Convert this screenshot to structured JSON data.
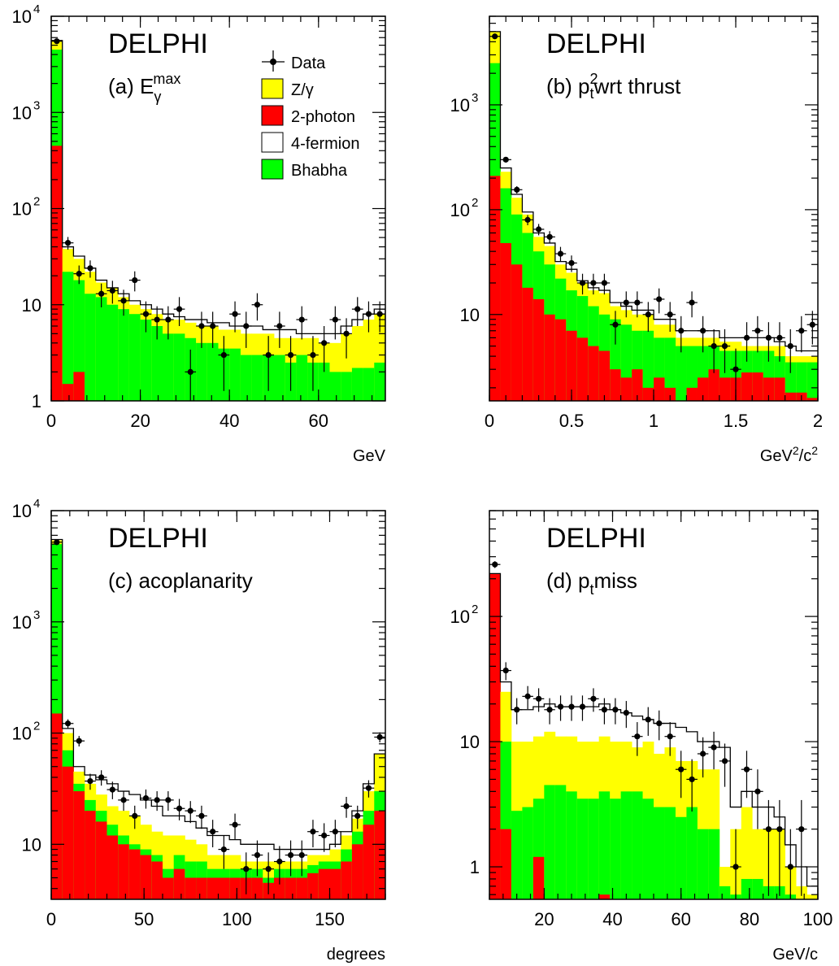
{
  "figure_label": "DELPHI",
  "legend": {
    "items": [
      {
        "key": "data",
        "label": "Data",
        "kind": "marker"
      },
      {
        "key": "zg",
        "label": "Z/γ",
        "color": "#ffff00"
      },
      {
        "key": "twophoton",
        "label": "2-photon",
        "color": "#ff0000"
      },
      {
        "key": "fourfermion",
        "label": "4-fermion",
        "color": "#ffffff"
      },
      {
        "key": "bhabha",
        "label": "Bhabha",
        "color": "#00ff00"
      }
    ]
  },
  "chart_data": [
    {
      "id": "a",
      "type": "histogram",
      "title": "DELPHI",
      "subtitle": "(a) Eγmax",
      "xlabel": "GeV",
      "xlim": [
        0,
        75
      ],
      "ylim": [
        1,
        10000
      ],
      "yscale": "log",
      "xticks": [
        0,
        20,
        40,
        60
      ],
      "bin_width": 2.5,
      "two_photon": [
        450,
        1.5,
        2,
        0.5,
        0.5,
        0.5,
        0.5,
        0.5,
        0.5,
        0.5,
        0.5,
        0.5,
        0.5,
        0.5,
        0.5,
        0.5,
        0.5,
        0.5,
        0.5,
        0.5,
        0.5,
        0.5,
        0.5,
        0.5,
        0.5,
        0.5,
        0.5,
        0.5,
        0.5,
        0.5
      ],
      "bhabha_top": [
        4500,
        22,
        18,
        13,
        12,
        10,
        9,
        8,
        7,
        6,
        5,
        5,
        4.5,
        4,
        4,
        3.5,
        3.5,
        3,
        3,
        3,
        3,
        2.5,
        3,
        2.5,
        2.5,
        2,
        2,
        2.2,
        2.2,
        2.5
      ],
      "zg_top": [
        5600,
        38,
        30,
        22,
        17,
        15,
        12,
        10,
        9,
        8,
        7,
        7,
        6.5,
        6,
        6,
        5.5,
        5.5,
        5,
        5,
        5,
        4.5,
        4.5,
        4.5,
        4.5,
        4,
        4,
        5,
        6,
        7,
        8
      ],
      "total": [
        5600,
        40,
        32,
        24,
        18,
        15,
        13,
        11,
        10,
        9,
        8,
        7.5,
        7,
        7,
        6.5,
        6.5,
        6,
        6,
        6,
        5.5,
        5.5,
        5.5,
        5,
        5,
        5,
        5,
        6,
        7,
        8,
        9
      ],
      "data": [
        {
          "x": 1.25,
          "y": 5500
        },
        {
          "x": 3.75,
          "y": 44
        },
        {
          "x": 6.25,
          "y": 21
        },
        {
          "x": 8.75,
          "y": 24
        },
        {
          "x": 11.25,
          "y": 13
        },
        {
          "x": 13.75,
          "y": 14
        },
        {
          "x": 16.25,
          "y": 11
        },
        {
          "x": 18.75,
          "y": 18
        },
        {
          "x": 21.25,
          "y": 8
        },
        {
          "x": 23.75,
          "y": 7
        },
        {
          "x": 26.25,
          "y": 7
        },
        {
          "x": 28.75,
          "y": 9
        },
        {
          "x": 31.25,
          "y": 2
        },
        {
          "x": 33.75,
          "y": 6
        },
        {
          "x": 36.25,
          "y": 6
        },
        {
          "x": 38.75,
          "y": 3
        },
        {
          "x": 41.25,
          "y": 8
        },
        {
          "x": 43.75,
          "y": 6
        },
        {
          "x": 46.25,
          "y": 10
        },
        {
          "x": 48.75,
          "y": 3
        },
        {
          "x": 51.25,
          "y": 6
        },
        {
          "x": 53.75,
          "y": 3
        },
        {
          "x": 56.25,
          "y": 7
        },
        {
          "x": 58.75,
          "y": 3
        },
        {
          "x": 61.25,
          "y": 4
        },
        {
          "x": 63.75,
          "y": 7
        },
        {
          "x": 66.25,
          "y": 5
        },
        {
          "x": 68.75,
          "y": 9
        },
        {
          "x": 71.25,
          "y": 8
        },
        {
          "x": 73.75,
          "y": 8
        }
      ]
    },
    {
      "id": "b",
      "type": "histogram",
      "title": "DELPHI",
      "subtitle": "(b) pt2wrt thrust",
      "xlabel": "GeV2/c2",
      "xlim": [
        0,
        2
      ],
      "ylim": [
        1.5,
        7000
      ],
      "yscale": "log",
      "xticks": [
        0,
        0.5,
        1,
        1.5,
        2
      ],
      "bin_width": 0.0667,
      "two_photon": [
        210,
        48,
        30,
        18,
        14,
        10,
        9,
        7,
        6,
        5,
        4.5,
        3,
        2.5,
        3,
        2,
        2.5,
        2,
        1.5,
        2,
        2.5,
        3,
        2.5,
        2.5,
        2.8,
        2.8,
        2.5,
        2.5,
        1.8,
        1.8,
        1.6
      ],
      "bhabha_top": [
        2500,
        160,
        90,
        60,
        40,
        30,
        22,
        17,
        15,
        12,
        10,
        9,
        8,
        7,
        7,
        6,
        6,
        5,
        5,
        5,
        5,
        4.5,
        4.5,
        4.5,
        4.5,
        4.5,
        4,
        3.5,
        3.5,
        3.5
      ],
      "zg_top": [
        5000,
        230,
        130,
        90,
        55,
        45,
        30,
        25,
        20,
        17,
        16,
        12,
        11,
        10,
        10,
        8,
        8,
        6,
        6,
        6,
        6,
        5.5,
        5.5,
        5,
        5,
        5,
        5,
        4,
        4,
        4
      ],
      "total": [
        5000,
        250,
        140,
        95,
        60,
        48,
        32,
        27,
        21,
        18,
        17,
        13,
        12,
        11,
        11,
        9,
        9,
        7,
        7,
        7,
        7,
        6,
        6,
        6,
        6,
        6,
        5.5,
        5,
        4.5,
        4.5
      ],
      "data": [
        {
          "x": 0.033,
          "y": 4500
        },
        {
          "x": 0.1,
          "y": 300
        },
        {
          "x": 0.167,
          "y": 155
        },
        {
          "x": 0.233,
          "y": 80
        },
        {
          "x": 0.3,
          "y": 65
        },
        {
          "x": 0.367,
          "y": 55
        },
        {
          "x": 0.433,
          "y": 38
        },
        {
          "x": 0.5,
          "y": 31
        },
        {
          "x": 0.567,
          "y": 20
        },
        {
          "x": 0.633,
          "y": 20
        },
        {
          "x": 0.7,
          "y": 20
        },
        {
          "x": 0.767,
          "y": 8
        },
        {
          "x": 0.833,
          "y": 13
        },
        {
          "x": 0.9,
          "y": 13
        },
        {
          "x": 0.967,
          "y": 10
        },
        {
          "x": 1.033,
          "y": 14
        },
        {
          "x": 1.1,
          "y": 10
        },
        {
          "x": 1.167,
          "y": 7
        },
        {
          "x": 1.233,
          "y": 13
        },
        {
          "x": 1.3,
          "y": 7
        },
        {
          "x": 1.367,
          "y": 5
        },
        {
          "x": 1.433,
          "y": 5
        },
        {
          "x": 1.5,
          "y": 3
        },
        {
          "x": 1.567,
          "y": 6
        },
        {
          "x": 1.633,
          "y": 7
        },
        {
          "x": 1.7,
          "y": 6
        },
        {
          "x": 1.767,
          "y": 6
        },
        {
          "x": 1.833,
          "y": 5
        },
        {
          "x": 1.9,
          "y": 7
        },
        {
          "x": 1.967,
          "y": 8
        }
      ]
    },
    {
      "id": "c",
      "type": "histogram",
      "title": "DELPHI",
      "subtitle": "(c) acoplanarity",
      "xlabel": "degrees",
      "xlim": [
        0,
        180
      ],
      "ylim": [
        3.2,
        10000
      ],
      "yscale": "log",
      "xticks": [
        0,
        50,
        100,
        150
      ],
      "bin_width": 6,
      "two_photon": [
        150,
        50,
        30,
        20,
        16,
        12,
        10,
        9,
        8,
        7,
        5,
        6,
        5,
        5,
        5,
        5,
        5,
        5,
        5,
        4.5,
        5,
        5,
        5,
        5.5,
        6,
        6,
        7,
        10,
        15,
        20
      ],
      "bhabha_top": [
        5000,
        70,
        35,
        25,
        20,
        15,
        12,
        10,
        9,
        8,
        6,
        8,
        7,
        7,
        6,
        6,
        6,
        6,
        6,
        5,
        6,
        6,
        6,
        6.5,
        7,
        7,
        9,
        13,
        20,
        30
      ],
      "zg_top": [
        5400,
        100,
        45,
        35,
        28,
        22,
        20,
        18,
        15,
        13,
        12,
        12,
        11,
        10,
        8,
        8,
        8,
        7,
        7,
        7,
        7,
        7,
        7,
        8,
        8,
        9,
        12,
        17,
        30,
        65
      ],
      "total": [
        5500,
        110,
        50,
        42,
        38,
        35,
        30,
        28,
        25,
        22,
        18,
        18,
        16,
        14,
        12,
        12,
        11,
        10,
        10,
        10,
        9,
        9,
        9,
        9,
        9,
        10,
        13,
        20,
        35,
        65
      ],
      "data": [
        {
          "x": 3,
          "y": 5200
        },
        {
          "x": 9,
          "y": 122
        },
        {
          "x": 15,
          "y": 85
        },
        {
          "x": 21,
          "y": 37
        },
        {
          "x": 27,
          "y": 40
        },
        {
          "x": 33,
          "y": 31
        },
        {
          "x": 39,
          "y": 25
        },
        {
          "x": 45,
          "y": 18
        },
        {
          "x": 51,
          "y": 26
        },
        {
          "x": 57,
          "y": 25
        },
        {
          "x": 63,
          "y": 25
        },
        {
          "x": 69,
          "y": 21
        },
        {
          "x": 75,
          "y": 20
        },
        {
          "x": 81,
          "y": 18
        },
        {
          "x": 87,
          "y": 13
        },
        {
          "x": 93,
          "y": 9
        },
        {
          "x": 99,
          "y": 15
        },
        {
          "x": 105,
          "y": 6
        },
        {
          "x": 111,
          "y": 8
        },
        {
          "x": 117,
          "y": 6
        },
        {
          "x": 123,
          "y": 7
        },
        {
          "x": 129,
          "y": 8
        },
        {
          "x": 135,
          "y": 8
        },
        {
          "x": 141,
          "y": 13
        },
        {
          "x": 147,
          "y": 12
        },
        {
          "x": 153,
          "y": 13
        },
        {
          "x": 159,
          "y": 22
        },
        {
          "x": 165,
          "y": 18
        },
        {
          "x": 171,
          "y": 32
        },
        {
          "x": 177,
          "y": 92
        }
      ]
    },
    {
      "id": "d",
      "type": "histogram",
      "title": "DELPHI",
      "subtitle": "(d) ptmiss",
      "xlabel": "GeV/c",
      "xlim": [
        4,
        100
      ],
      "ylim": [
        0.55,
        700
      ],
      "yscale": "log",
      "xticks": [
        20,
        40,
        60,
        80,
        100
      ],
      "bin_width": 3.2,
      "two_photon": [
        220,
        2,
        0.1,
        0.1,
        1.2,
        0.1,
        0.1,
        0.1,
        0.1,
        0.1,
        0.6,
        0.1,
        0.1,
        0.1,
        0.1,
        0.1,
        0.1,
        0.1,
        0.1,
        0.1,
        0.1,
        0.1,
        0.1,
        0.1,
        0.1,
        0.1,
        0.1,
        0.1,
        0.1,
        0.1
      ],
      "bhabha_top": [
        220,
        10,
        2.8,
        3,
        3.5,
        4.5,
        4.5,
        4,
        3.5,
        3.5,
        4,
        3.5,
        4,
        4,
        3.5,
        3,
        3,
        2.5,
        3,
        2,
        2,
        0.7,
        0.6,
        0.8,
        0.8,
        0.7,
        0.7,
        0.6,
        0.55,
        0.55
      ],
      "zg_top": [
        220,
        25,
        10,
        10,
        11,
        12,
        11,
        11,
        10,
        10,
        11,
        10,
        10,
        9,
        10,
        8,
        9,
        7,
        7,
        6,
        6,
        1,
        2,
        3,
        2,
        2,
        2,
        1,
        0.7,
        0.6
      ],
      "total": [
        220,
        30,
        18,
        18,
        19,
        20,
        19,
        19,
        19,
        19,
        20,
        18,
        17,
        16,
        15,
        14,
        14,
        13,
        12,
        10,
        10,
        9,
        3,
        4,
        3,
        3,
        2.5,
        1.5,
        1,
        0.7
      ],
      "data": [
        {
          "x": 5.6,
          "y": 260
        },
        {
          "x": 8.8,
          "y": 37
        },
        {
          "x": 12,
          "y": 18
        },
        {
          "x": 15.2,
          "y": 23
        },
        {
          "x": 18.4,
          "y": 22
        },
        {
          "x": 21.6,
          "y": 18
        },
        {
          "x": 24.8,
          "y": 19
        },
        {
          "x": 28,
          "y": 19
        },
        {
          "x": 31.2,
          "y": 19
        },
        {
          "x": 34.4,
          "y": 22
        },
        {
          "x": 37.6,
          "y": 18
        },
        {
          "x": 40.8,
          "y": 18
        },
        {
          "x": 44,
          "y": 17
        },
        {
          "x": 47.2,
          "y": 11
        },
        {
          "x": 50.4,
          "y": 15
        },
        {
          "x": 53.6,
          "y": 14
        },
        {
          "x": 56.8,
          "y": 11
        },
        {
          "x": 60,
          "y": 6
        },
        {
          "x": 63.2,
          "y": 5
        },
        {
          "x": 66.4,
          "y": 8
        },
        {
          "x": 69.6,
          "y": 9
        },
        {
          "x": 72.8,
          "y": 7
        },
        {
          "x": 76,
          "y": 1
        },
        {
          "x": 79.2,
          "y": 6
        },
        {
          "x": 82.4,
          "y": 4
        },
        {
          "x": 85.6,
          "y": 2
        },
        {
          "x": 88.8,
          "y": 2
        },
        {
          "x": 92,
          "y": 1
        },
        {
          "x": 95.2,
          "y": 2
        }
      ]
    }
  ]
}
